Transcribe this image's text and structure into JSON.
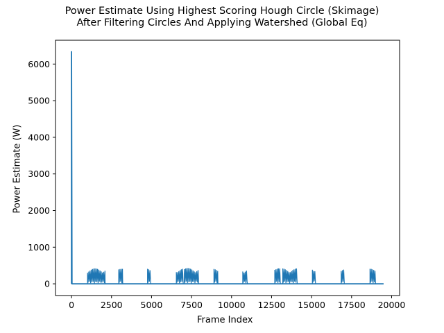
{
  "chart_data": {
    "type": "line",
    "title": "Power Estimate Using Highest Scoring Hough Circle (Skimage)",
    "subtitle": "After Filtering Circles And Applying Watershed (Global Eq)",
    "xlabel": "Frame Index",
    "ylabel": "Power Estimate (W)",
    "xlim": [
      -1000,
      20500
    ],
    "ylim": [
      -320,
      6650
    ],
    "xticks": [
      0,
      2500,
      5000,
      7500,
      10000,
      12500,
      15000,
      17500,
      20000
    ],
    "yticks": [
      0,
      1000,
      2000,
      3000,
      4000,
      5000,
      6000
    ],
    "grid": false,
    "legend": "none",
    "series": [
      {
        "color": "#1f77b4",
        "baseline": 0,
        "x_range": [
          0,
          19500
        ],
        "spikes": [
          {
            "x": 0,
            "y": 6350
          },
          {
            "x": 30,
            "y": 0
          }
        ],
        "bursts": [
          {
            "x_start": 1000,
            "x_end": 2100,
            "peak": 420
          },
          {
            "x_start": 2950,
            "x_end": 3200,
            "peak": 410
          },
          {
            "x_start": 4750,
            "x_end": 4950,
            "peak": 420
          },
          {
            "x_start": 6550,
            "x_end": 7000,
            "peak": 420
          },
          {
            "x_start": 7050,
            "x_end": 7950,
            "peak": 430
          },
          {
            "x_start": 8900,
            "x_end": 9150,
            "peak": 410
          },
          {
            "x_start": 10700,
            "x_end": 11000,
            "peak": 420
          },
          {
            "x_start": 12700,
            "x_end": 13050,
            "peak": 420
          },
          {
            "x_start": 13200,
            "x_end": 14100,
            "peak": 420
          },
          {
            "x_start": 15050,
            "x_end": 15250,
            "peak": 460
          },
          {
            "x_start": 16850,
            "x_end": 17050,
            "peak": 400
          },
          {
            "x_start": 18650,
            "x_end": 19000,
            "peak": 410
          }
        ]
      }
    ]
  }
}
